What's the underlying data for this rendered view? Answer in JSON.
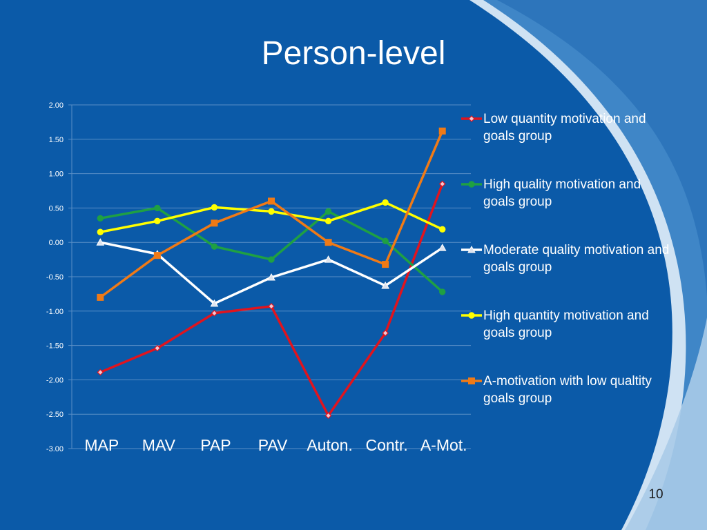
{
  "slide": {
    "title": "Person-level",
    "page_number": "10"
  },
  "colors": {
    "background": "#0b5aa8",
    "grid": "#5a8fc6",
    "light_swoosh": "#d8e8f5"
  },
  "chart_data": {
    "type": "line",
    "title": "",
    "xlabel": "",
    "ylabel": "",
    "categories": [
      "MAP",
      "MAV",
      "PAP",
      "PAV",
      "Auton.",
      "Contr.",
      "A-Mot."
    ],
    "ylim": [
      -3.0,
      2.0
    ],
    "yticks": [
      "2.00",
      "1.50",
      "1.00",
      "0.50",
      "0.00",
      "-0.50",
      "-1.00",
      "-1.50",
      "-2.00",
      "-2.50",
      "-3.00"
    ],
    "grid": true,
    "legend_position": "right",
    "series": [
      {
        "name": "Low quantity motivation and goals group",
        "color": "#e0141e",
        "marker": "diamond",
        "values": [
          -1.89,
          -1.54,
          -1.03,
          -0.93,
          -2.52,
          -1.32,
          0.85
        ]
      },
      {
        "name": "High quality motivation and goals group",
        "color": "#1fa043",
        "marker": "circle",
        "values": [
          0.35,
          0.5,
          -0.06,
          -0.25,
          0.45,
          0.02,
          -0.72
        ]
      },
      {
        "name": "Moderate quality motivation and goals group",
        "color": "#ffffff",
        "marker": "triangle",
        "values": [
          0.0,
          -0.17,
          -0.89,
          -0.51,
          -0.25,
          -0.63,
          -0.08
        ]
      },
      {
        "name": "High quantity motivation and goals group",
        "color": "#ffff00",
        "marker": "circle",
        "values": [
          0.15,
          0.31,
          0.51,
          0.45,
          0.31,
          0.58,
          0.19
        ]
      },
      {
        "name": "A-motivation with low qualtity goals group",
        "color": "#f07a16",
        "marker": "square",
        "values": [
          -0.8,
          -0.19,
          0.28,
          0.6,
          0.0,
          -0.32,
          1.62
        ]
      }
    ]
  }
}
